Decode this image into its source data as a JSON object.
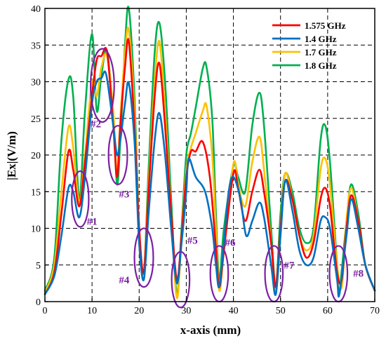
{
  "chart_data": {
    "type": "line",
    "xlabel": "x-axis (mm)",
    "ylabel": "|Ex|(V/m)",
    "xlim": [
      0,
      70
    ],
    "ylim": [
      0,
      40
    ],
    "xticks": [
      0,
      10,
      20,
      30,
      40,
      50,
      60,
      70
    ],
    "yticks": [
      0,
      5,
      10,
      15,
      20,
      25,
      30,
      35,
      40
    ],
    "grid": true,
    "grid_style": "dashed",
    "legend_position": "top-right",
    "series": [
      {
        "name": "1.575 GHz",
        "color": "#ff0000",
        "points": [
          [
            0,
            1
          ],
          [
            2,
            4
          ],
          [
            3.5,
            12
          ],
          [
            5,
            20.5
          ],
          [
            6,
            18
          ],
          [
            7.3,
            13
          ],
          [
            8.5,
            19
          ],
          [
            10,
            28
          ],
          [
            11,
            33
          ],
          [
            12,
            33.5
          ],
          [
            13.2,
            34
          ],
          [
            14.5,
            24
          ],
          [
            15.3,
            17
          ],
          [
            16,
            24
          ],
          [
            17,
            32
          ],
          [
            17.8,
            35.5
          ],
          [
            19,
            24
          ],
          [
            20,
            10
          ],
          [
            21,
            4
          ],
          [
            22,
            15
          ],
          [
            23.3,
            28
          ],
          [
            24.3,
            32.5
          ],
          [
            25.5,
            24
          ],
          [
            26.8,
            12
          ],
          [
            28,
            3
          ],
          [
            29,
            9
          ],
          [
            30,
            17
          ],
          [
            31,
            20.5
          ],
          [
            32,
            20.5
          ],
          [
            33.5,
            21.8
          ],
          [
            35,
            17
          ],
          [
            36.2,
            8
          ],
          [
            37,
            2
          ],
          [
            38,
            7
          ],
          [
            40,
            17.5
          ],
          [
            41,
            15.5
          ],
          [
            42.5,
            11
          ],
          [
            44,
            15
          ],
          [
            45.5,
            18
          ],
          [
            46.5,
            15
          ],
          [
            48,
            8
          ],
          [
            49,
            2
          ],
          [
            50,
            10
          ],
          [
            51,
            16.5
          ],
          [
            52.5,
            14
          ],
          [
            54,
            9
          ],
          [
            55.5,
            6
          ],
          [
            57,
            8
          ],
          [
            58.5,
            14
          ],
          [
            59.5,
            15.5
          ],
          [
            60.5,
            13
          ],
          [
            62,
            4
          ],
          [
            63,
            3
          ],
          [
            64,
            10
          ],
          [
            65,
            14.5
          ],
          [
            66.5,
            11
          ],
          [
            68,
            5
          ],
          [
            70,
            1.5
          ]
        ]
      },
      {
        "name": "1.4 GHz",
        "color": "#0070c0",
        "points": [
          [
            0,
            1
          ],
          [
            2,
            3.5
          ],
          [
            3.5,
            9
          ],
          [
            5,
            15.5
          ],
          [
            6,
            15
          ],
          [
            7.3,
            11.5
          ],
          [
            8.5,
            17
          ],
          [
            10,
            27
          ],
          [
            11,
            30
          ],
          [
            12,
            30.5
          ],
          [
            13,
            31
          ],
          [
            14.5,
            24
          ],
          [
            15.3,
            20
          ],
          [
            16,
            22
          ],
          [
            17,
            27
          ],
          [
            17.8,
            29.8
          ],
          [
            19,
            22
          ],
          [
            20,
            8
          ],
          [
            21,
            3
          ],
          [
            22,
            12
          ],
          [
            23.3,
            22
          ],
          [
            24.3,
            25.7
          ],
          [
            25.5,
            20
          ],
          [
            26.8,
            10
          ],
          [
            28,
            2.5
          ],
          [
            29,
            8
          ],
          [
            30,
            15
          ],
          [
            30.5,
            19.5
          ],
          [
            32,
            17
          ],
          [
            34,
            15
          ],
          [
            35.5,
            10
          ],
          [
            36.3,
            5
          ],
          [
            37,
            2
          ],
          [
            38,
            8
          ],
          [
            39,
            15
          ],
          [
            40,
            17
          ],
          [
            41.5,
            14
          ],
          [
            42.7,
            9
          ],
          [
            44,
            11
          ],
          [
            45.5,
            13.5
          ],
          [
            46.5,
            11.5
          ],
          [
            48,
            5
          ],
          [
            49,
            1
          ],
          [
            50,
            9
          ],
          [
            51,
            16.5
          ],
          [
            52.5,
            12.5
          ],
          [
            54,
            7
          ],
          [
            55.5,
            5
          ],
          [
            57,
            6
          ],
          [
            58.5,
            11
          ],
          [
            59.5,
            11.5
          ],
          [
            60.5,
            10
          ],
          [
            62,
            3
          ],
          [
            62.5,
            1
          ],
          [
            64,
            9
          ],
          [
            65,
            14
          ],
          [
            66.5,
            10
          ],
          [
            68,
            5
          ],
          [
            70,
            1.5
          ]
        ]
      },
      {
        "name": "1.7 GHz",
        "color": "#ffc000",
        "points": [
          [
            0,
            1.2
          ],
          [
            2,
            5
          ],
          [
            3.5,
            15
          ],
          [
            5,
            23.8
          ],
          [
            6,
            21
          ],
          [
            7.3,
            13.5
          ],
          [
            8.5,
            20
          ],
          [
            10,
            30
          ],
          [
            11,
            28
          ],
          [
            12,
            32
          ],
          [
            13.2,
            33.5
          ],
          [
            14.5,
            26
          ],
          [
            15.3,
            17.5
          ],
          [
            16,
            25
          ],
          [
            17,
            34
          ],
          [
            17.8,
            37
          ],
          [
            19,
            26
          ],
          [
            20,
            10
          ],
          [
            21,
            4
          ],
          [
            22,
            16
          ],
          [
            23.3,
            30
          ],
          [
            24.3,
            35.5
          ],
          [
            25.5,
            26
          ],
          [
            26.8,
            12
          ],
          [
            28,
            0.5
          ],
          [
            29,
            9
          ],
          [
            30,
            18
          ],
          [
            31,
            21
          ],
          [
            32,
            23
          ],
          [
            33.5,
            26
          ],
          [
            34.3,
            26.7
          ],
          [
            35.5,
            20
          ],
          [
            36.3,
            10
          ],
          [
            37,
            1.5
          ],
          [
            38,
            7
          ],
          [
            40,
            18.8
          ],
          [
            41,
            16
          ],
          [
            42.5,
            13
          ],
          [
            44,
            19
          ],
          [
            45.5,
            22.5
          ],
          [
            46.5,
            18
          ],
          [
            48,
            8
          ],
          [
            49,
            1.5
          ],
          [
            50,
            10
          ],
          [
            51,
            17.5
          ],
          [
            52.5,
            14
          ],
          [
            54,
            9
          ],
          [
            55.5,
            7
          ],
          [
            57,
            9
          ],
          [
            58.5,
            18
          ],
          [
            59.5,
            19.5
          ],
          [
            60.5,
            16
          ],
          [
            62,
            5
          ],
          [
            63,
            2
          ],
          [
            64,
            11
          ],
          [
            65,
            15.5
          ],
          [
            66.5,
            11
          ],
          [
            68,
            5
          ],
          [
            70,
            1.5
          ]
        ]
      },
      {
        "name": "1.8 GHz",
        "color": "#00b050",
        "points": [
          [
            0,
            1.5
          ],
          [
            2,
            6
          ],
          [
            3.5,
            22
          ],
          [
            5,
            30.3
          ],
          [
            6,
            28
          ],
          [
            7.3,
            14
          ],
          [
            8.5,
            26
          ],
          [
            10,
            36.5
          ],
          [
            11,
            26
          ],
          [
            12,
            31
          ],
          [
            13.2,
            34.2
          ],
          [
            14.5,
            25
          ],
          [
            15.3,
            16
          ],
          [
            16,
            22
          ],
          [
            17,
            35
          ],
          [
            17.8,
            40
          ],
          [
            19,
            28
          ],
          [
            20,
            10
          ],
          [
            21,
            4
          ],
          [
            22,
            18
          ],
          [
            23.3,
            34
          ],
          [
            24.3,
            38
          ],
          [
            25.5,
            30
          ],
          [
            26.8,
            14
          ],
          [
            28,
            1
          ],
          [
            29,
            10
          ],
          [
            30,
            20
          ],
          [
            31,
            23
          ],
          [
            32,
            26.5
          ],
          [
            33.5,
            31.8
          ],
          [
            34.3,
            32
          ],
          [
            35.5,
            25
          ],
          [
            36.3,
            12
          ],
          [
            37,
            3
          ],
          [
            38,
            10
          ],
          [
            40,
            18.5
          ],
          [
            41,
            17
          ],
          [
            42.5,
            15
          ],
          [
            44,
            24
          ],
          [
            45.5,
            28.5
          ],
          [
            46.5,
            24
          ],
          [
            48,
            10
          ],
          [
            49,
            2
          ],
          [
            50,
            12
          ],
          [
            51,
            17.5
          ],
          [
            52.5,
            15
          ],
          [
            54,
            10
          ],
          [
            55.5,
            8
          ],
          [
            57,
            10
          ],
          [
            58.5,
            22
          ],
          [
            59.5,
            24
          ],
          [
            60.5,
            19
          ],
          [
            62,
            5
          ],
          [
            62.5,
            1.5
          ],
          [
            64,
            11
          ],
          [
            65,
            16
          ],
          [
            66.5,
            12
          ],
          [
            68,
            5
          ],
          [
            70,
            1.5
          ]
        ]
      }
    ],
    "annotations": [
      {
        "label": "#1",
        "cx": 7.5,
        "cy": 14,
        "rx": 1.8,
        "ry": 3.8,
        "tx": 8.9,
        "ty": 10.5
      },
      {
        "label": "#2",
        "cx": 12.2,
        "cy": 29.5,
        "rx": 2.5,
        "ry": 5.0,
        "tx": 9.7,
        "ty": 23.8
      },
      {
        "label": "#3",
        "cx": 15.5,
        "cy": 20,
        "rx": 2.0,
        "ry": 4.0,
        "tx": 15.7,
        "ty": 14.2
      },
      {
        "label": "#4",
        "cx": 21.0,
        "cy": 6,
        "rx": 2.0,
        "ry": 4.0,
        "tx": 15.7,
        "ty": 2.5
      },
      {
        "label": "#5",
        "cx": 28.8,
        "cy": 3,
        "rx": 1.9,
        "ry": 3.8,
        "tx": 30.2,
        "ty": 7.9
      },
      {
        "label": "#6",
        "cx": 37.0,
        "cy": 3.8,
        "rx": 1.9,
        "ry": 3.8,
        "tx": 38.2,
        "ty": 7.6
      },
      {
        "label": "#7",
        "cx": 48.6,
        "cy": 3.8,
        "rx": 1.9,
        "ry": 3.8,
        "tx": 50.7,
        "ty": 4.5
      },
      {
        "label": "#8",
        "cx": 62.3,
        "cy": 3.8,
        "rx": 1.9,
        "ry": 3.8,
        "tx": 65.4,
        "ty": 3.4
      }
    ],
    "annotation_color": "#7b1fa2"
  }
}
